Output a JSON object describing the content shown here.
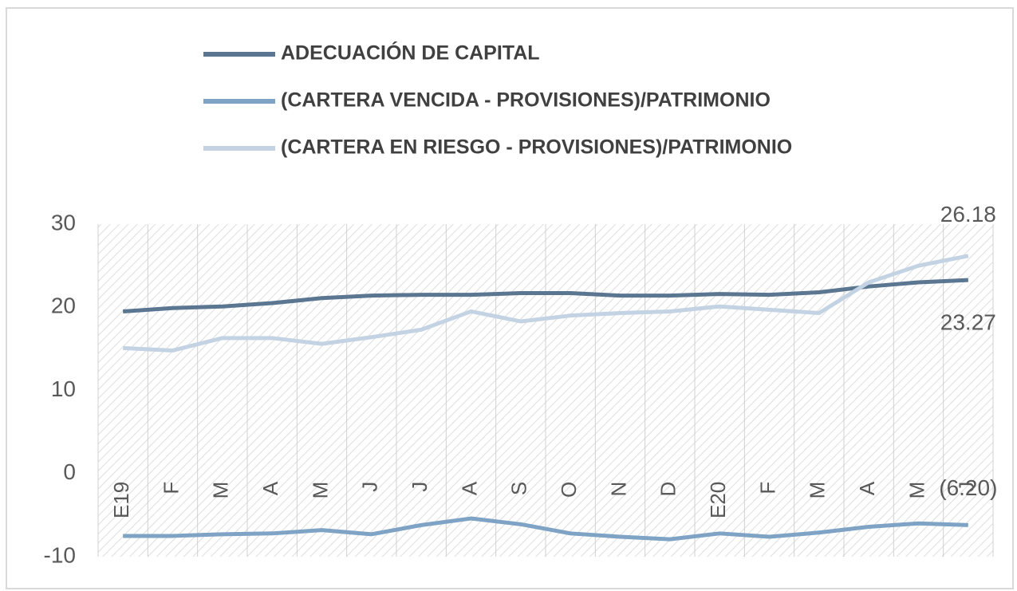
{
  "chart_data": {
    "type": "line",
    "categories": [
      "E19",
      "F",
      "M",
      "A",
      "M",
      "J",
      "J",
      "A",
      "S",
      "O",
      "N",
      "D",
      "E20",
      "F",
      "M",
      "A",
      "M",
      "J"
    ],
    "series": [
      {
        "name": "ADECUACIÓN DE CAPITAL",
        "color": "#5b7690",
        "values": [
          19.5,
          19.9,
          20.1,
          20.5,
          21.1,
          21.4,
          21.5,
          21.5,
          21.7,
          21.7,
          21.4,
          21.4,
          21.6,
          21.5,
          21.8,
          22.5,
          23.0,
          23.27
        ],
        "value_labels": [
          null,
          null,
          null,
          null,
          null,
          null,
          null,
          null,
          null,
          null,
          null,
          null,
          null,
          null,
          null,
          null,
          null,
          "23.27"
        ]
      },
      {
        "name": "(CARTERA VENCIDA - PROVISIONES)/PATRIMONIO",
        "color": "#7ea3c4",
        "values": [
          -7.5,
          -7.5,
          -7.3,
          -7.2,
          -6.8,
          -7.3,
          -6.2,
          -5.4,
          -6.1,
          -7.2,
          -7.6,
          -7.9,
          -7.2,
          -7.6,
          -7.1,
          -6.4,
          -6.0,
          -6.2
        ],
        "value_labels": [
          null,
          null,
          null,
          null,
          null,
          null,
          null,
          null,
          null,
          null,
          null,
          null,
          null,
          null,
          null,
          null,
          null,
          "(6.20)"
        ]
      },
      {
        "name": "(CARTERA EN RIESGO - PROVISIONES)/PATRIMONIO",
        "color": "#c3d3e3",
        "values": [
          15.1,
          14.8,
          16.3,
          16.3,
          15.6,
          16.4,
          17.3,
          19.5,
          18.3,
          19.0,
          19.3,
          19.5,
          20.1,
          19.7,
          19.3,
          23.0,
          25.0,
          26.18
        ],
        "value_labels": [
          null,
          null,
          null,
          null,
          null,
          null,
          null,
          null,
          null,
          null,
          null,
          null,
          null,
          null,
          null,
          null,
          null,
          "26.18"
        ]
      }
    ],
    "ylim": [
      -10,
      30
    ],
    "yticks": [
      -10,
      0,
      10,
      20,
      30
    ],
    "grid": false
  }
}
